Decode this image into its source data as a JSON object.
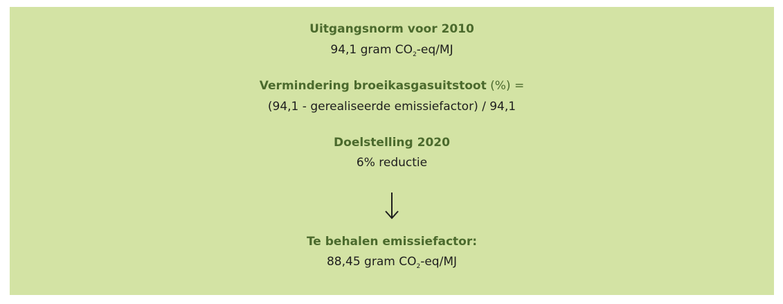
{
  "blocks": [
    {
      "heading": "Uitgangsnorm voor 2010",
      "line": [
        "94,1 gram CO",
        "2",
        "-eq/MJ"
      ]
    },
    {
      "heading": "Vermindering broeikasgasuitstoot",
      "heading_suffix": "(%) =",
      "line": [
        "(94,1 - gerealiseerde emissiefactor) / 94,1"
      ]
    },
    {
      "heading": "Doelstelling 2020",
      "line": [
        "6% reductie"
      ]
    },
    {
      "heading": "Te behalen emissiefactor:",
      "line": [
        "88,45 gram CO",
        "2",
        "-eq/MJ"
      ]
    }
  ]
}
